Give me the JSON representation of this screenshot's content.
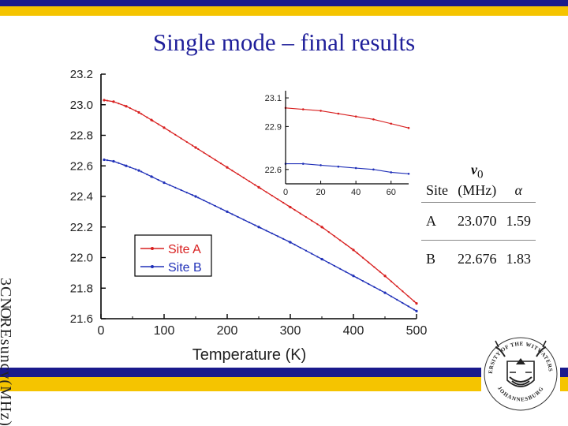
{
  "slide": {
    "title": "Single mode – final results",
    "garbled_axis_text": "3 C NOR E s u n c y ( M H z )"
  },
  "colors": {
    "stripe_navy": "#1a1a8c",
    "stripe_yellow": "#f5c400",
    "title": "#1f1f9a",
    "site_a": "#d82020",
    "site_b": "#2030b8"
  },
  "chart_data": [
    {
      "type": "scatter",
      "xlabel": "Temperature (K)",
      "ylabel": "",
      "xlim": [
        0,
        500
      ],
      "ylim": [
        21.6,
        23.2
      ],
      "xticks": [
        "0",
        "100",
        "200",
        "300",
        "400",
        "500"
      ],
      "yticks": [
        "21.6",
        "21.8",
        "22.0",
        "22.2",
        "22.4",
        "22.6",
        "22.8",
        "23.0",
        "23.2"
      ],
      "grid": false,
      "legend_position": "lower-left",
      "series": [
        {
          "name": "Site A",
          "color": "#d82020",
          "x": [
            5,
            20,
            40,
            60,
            80,
            100,
            150,
            200,
            250,
            300,
            350,
            400,
            450,
            500
          ],
          "y": [
            23.03,
            23.02,
            22.99,
            22.95,
            22.9,
            22.85,
            22.72,
            22.59,
            22.46,
            22.33,
            22.2,
            22.05,
            21.88,
            21.7
          ]
        },
        {
          "name": "Site B",
          "color": "#2030b8",
          "x": [
            5,
            20,
            40,
            60,
            80,
            100,
            150,
            200,
            250,
            300,
            350,
            400,
            450,
            500
          ],
          "y": [
            22.64,
            22.63,
            22.6,
            22.57,
            22.53,
            22.49,
            22.4,
            22.3,
            22.2,
            22.1,
            21.99,
            21.88,
            21.77,
            21.65
          ]
        }
      ]
    },
    {
      "type": "scatter",
      "xlabel": "",
      "ylabel": "",
      "xlim": [
        0,
        70
      ],
      "ylim": [
        22.5,
        23.15
      ],
      "xticks": [
        "0",
        "20",
        "40",
        "60"
      ],
      "yticks": [
        "22.6",
        "22.9",
        "23.1"
      ],
      "grid": false,
      "series": [
        {
          "color": "#d82020",
          "x": [
            0,
            10,
            20,
            30,
            40,
            50,
            60,
            70
          ],
          "y": [
            23.03,
            23.02,
            23.01,
            22.99,
            22.97,
            22.95,
            22.92,
            22.89
          ]
        },
        {
          "color": "#2030b8",
          "x": [
            0,
            10,
            20,
            30,
            40,
            50,
            60,
            70
          ],
          "y": [
            22.64,
            22.64,
            22.63,
            22.62,
            22.61,
            22.6,
            22.58,
            22.57
          ]
        }
      ]
    }
  ],
  "params_table": {
    "header": {
      "site": "Site",
      "nu": "v",
      "nu_sub": "0",
      "nu_unit": "(MHz)",
      "alpha": "α"
    },
    "rows": [
      {
        "site": "A",
        "nu0": "23.070",
        "alpha": "1.59"
      },
      {
        "site": "B",
        "nu0": "22.676",
        "alpha": "1.83"
      }
    ]
  },
  "logo": {
    "top_text": "UNIVERSITY OF THE WITWATERSRAND",
    "bottom_text": "JOHANNESBURG"
  }
}
